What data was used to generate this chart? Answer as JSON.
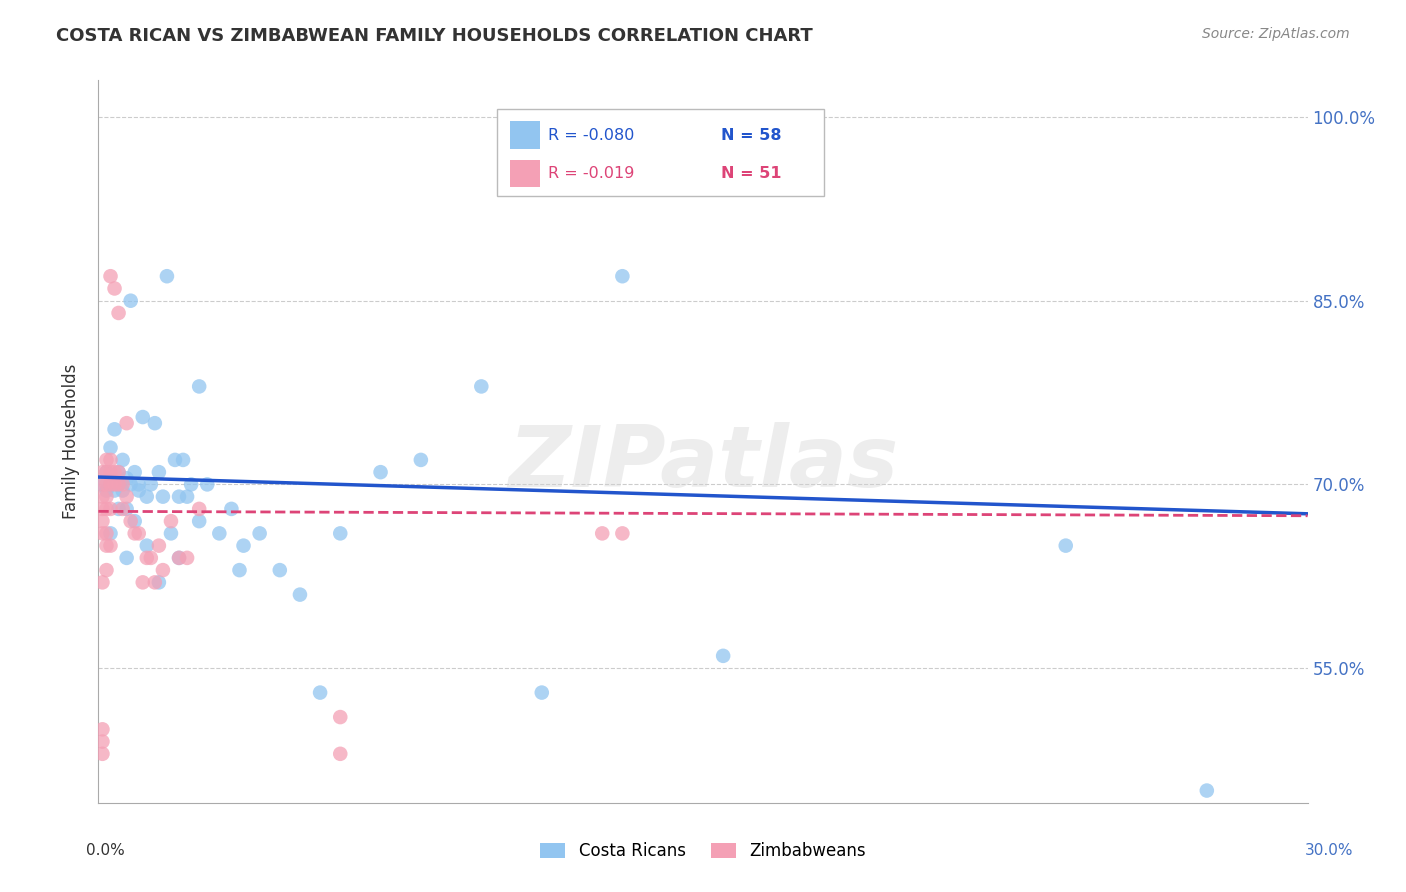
{
  "title": "COSTA RICAN VS ZIMBABWEAN FAMILY HOUSEHOLDS CORRELATION CHART",
  "source": "Source: ZipAtlas.com",
  "ylabel": "Family Households",
  "x_min": 0.0,
  "x_max": 0.3,
  "y_min": 0.44,
  "y_max": 1.03,
  "blue_color": "#92C5F0",
  "pink_color": "#F4A0B5",
  "blue_line_color": "#2255CC",
  "pink_line_color": "#DD4477",
  "watermark": "ZIPatlas",
  "legend_r_blue": "-0.080",
  "legend_n_blue": "58",
  "legend_r_pink": "-0.019",
  "legend_n_pink": "51",
  "blue_intercept": 0.706,
  "blue_slope": -0.1,
  "pink_intercept": 0.678,
  "pink_slope": -0.012,
  "ytick_vals": [
    0.55,
    0.7,
    0.85,
    1.0
  ],
  "ytick_labels": [
    "55.0%",
    "70.0%",
    "85.0%",
    "100.0%"
  ],
  "blue_x": [
    0.001,
    0.002,
    0.002,
    0.003,
    0.003,
    0.004,
    0.004,
    0.005,
    0.005,
    0.006,
    0.006,
    0.007,
    0.007,
    0.008,
    0.008,
    0.009,
    0.01,
    0.01,
    0.011,
    0.012,
    0.013,
    0.014,
    0.015,
    0.016,
    0.017,
    0.018,
    0.019,
    0.02,
    0.021,
    0.022,
    0.023,
    0.025,
    0.027,
    0.03,
    0.033,
    0.036,
    0.04,
    0.045,
    0.05,
    0.055,
    0.06,
    0.07,
    0.08,
    0.095,
    0.11,
    0.13,
    0.155,
    0.24,
    0.275,
    0.003,
    0.005,
    0.007,
    0.009,
    0.012,
    0.015,
    0.02,
    0.025,
    0.035
  ],
  "blue_y": [
    0.7,
    0.71,
    0.695,
    0.7,
    0.73,
    0.745,
    0.695,
    0.7,
    0.71,
    0.695,
    0.72,
    0.705,
    0.68,
    0.7,
    0.85,
    0.71,
    0.7,
    0.695,
    0.755,
    0.69,
    0.7,
    0.75,
    0.71,
    0.69,
    0.87,
    0.66,
    0.72,
    0.69,
    0.72,
    0.69,
    0.7,
    0.78,
    0.7,
    0.66,
    0.68,
    0.65,
    0.66,
    0.63,
    0.61,
    0.53,
    0.66,
    0.71,
    0.72,
    0.78,
    0.53,
    0.87,
    0.56,
    0.65,
    0.45,
    0.66,
    0.68,
    0.64,
    0.67,
    0.65,
    0.62,
    0.64,
    0.67,
    0.63
  ],
  "pink_x": [
    0.001,
    0.001,
    0.001,
    0.001,
    0.001,
    0.001,
    0.001,
    0.001,
    0.001,
    0.002,
    0.002,
    0.002,
    0.002,
    0.002,
    0.002,
    0.002,
    0.003,
    0.003,
    0.003,
    0.003,
    0.003,
    0.004,
    0.004,
    0.004,
    0.005,
    0.005,
    0.005,
    0.006,
    0.006,
    0.007,
    0.007,
    0.008,
    0.009,
    0.01,
    0.011,
    0.012,
    0.013,
    0.014,
    0.015,
    0.016,
    0.018,
    0.02,
    0.022,
    0.025,
    0.06,
    0.125,
    0.13,
    0.001,
    0.002,
    0.003,
    0.06
  ],
  "pink_y": [
    0.5,
    0.48,
    0.49,
    0.66,
    0.67,
    0.68,
    0.69,
    0.7,
    0.71,
    0.68,
    0.69,
    0.7,
    0.71,
    0.72,
    0.65,
    0.66,
    0.68,
    0.7,
    0.71,
    0.72,
    0.87,
    0.7,
    0.71,
    0.86,
    0.7,
    0.71,
    0.84,
    0.7,
    0.68,
    0.69,
    0.75,
    0.67,
    0.66,
    0.66,
    0.62,
    0.64,
    0.64,
    0.62,
    0.65,
    0.63,
    0.67,
    0.64,
    0.64,
    0.68,
    0.48,
    0.66,
    0.66,
    0.62,
    0.63,
    0.65,
    0.51
  ]
}
